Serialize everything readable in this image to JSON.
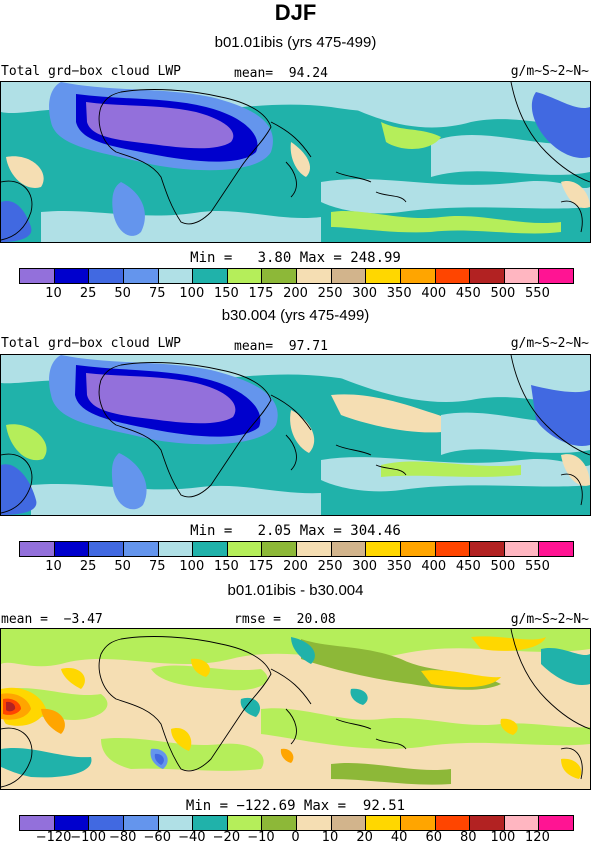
{
  "page": {
    "title": "DJF"
  },
  "panels": [
    {
      "title": "b01.01ibis (yrs 475-499)",
      "left_label": "Total grd−box cloud LWP",
      "center_label": "mean=  94.24",
      "units": "g/m~S~2~N~",
      "stats": "Min =   3.80 Max = 248.99"
    },
    {
      "title": "b30.004 (yrs 475-499)",
      "left_label": "Total grd−box cloud LWP",
      "center_label": "mean=  97.71",
      "units": "g/m~S~2~N~",
      "stats": "Min =   2.05 Max = 304.46"
    },
    {
      "title": "b01.01ibis - b30.004",
      "left_label": "mean =  −3.47",
      "center_label": "rmse =  20.08",
      "units": "g/m~S~2~N~",
      "stats": "Min = −122.69 Max =  92.51"
    }
  ],
  "colorbar_abs": {
    "colors": [
      "#9370DB",
      "#0000CD",
      "#4169E1",
      "#6495ED",
      "#B0E0E6",
      "#20B2AA",
      "#B5EE5A",
      "#8DB838",
      "#F5DEB3",
      "#D2B48C",
      "#FFD700",
      "#FFA500",
      "#FF4500",
      "#B22222",
      "#FFB6C1",
      "#FF1493"
    ],
    "labels": [
      "10",
      "25",
      "50",
      "75",
      "100",
      "150",
      "175",
      "200",
      "250",
      "300",
      "350",
      "400",
      "450",
      "500",
      "550"
    ]
  },
  "colorbar_diff": {
    "colors": [
      "#9370DB",
      "#0000CD",
      "#4169E1",
      "#6495ED",
      "#B0E0E6",
      "#20B2AA",
      "#B5EE5A",
      "#8DB838",
      "#F5DEB3",
      "#D2B48C",
      "#FFD700",
      "#FFA500",
      "#FF4500",
      "#B22222",
      "#FFB6C1",
      "#FF1493"
    ],
    "labels": [
      "−120",
      "−100",
      "−80",
      "−60",
      "−40",
      "−20",
      "−10",
      "0",
      "10",
      "20",
      "40",
      "60",
      "80",
      "100",
      "120"
    ]
  }
}
